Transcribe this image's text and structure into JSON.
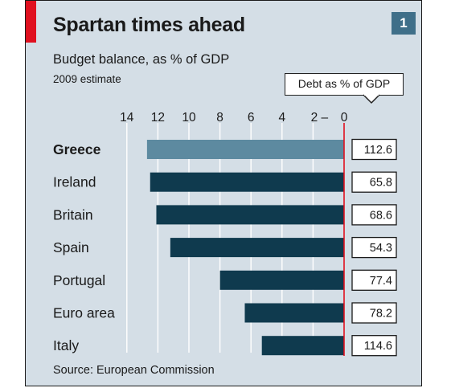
{
  "header": {
    "title": "Spartan times ahead",
    "subtitle": "Budget balance, as % of GDP",
    "note": "2009 estimate",
    "figure_number": "1"
  },
  "debt_header": "Debt as % of GDP",
  "source": "Source: European Commission",
  "colors": {
    "panel_background": "#d4dee6",
    "bar": "#0f3a4e",
    "highlight_bar": "#5d8aa0",
    "accent_red": "#e0101f",
    "zero_line": "#e0101f",
    "gridline": "#ffffff"
  },
  "chart_data": {
    "type": "bar",
    "orientation": "horizontal",
    "categories": [
      "Greece",
      "Ireland",
      "Britain",
      "Spain",
      "Portugal",
      "Euro area",
      "Italy"
    ],
    "highlight": "Greece",
    "series": [
      {
        "values": [
          -12.7,
          -12.5,
          -12.1,
          -11.2,
          -8.0,
          -6.4,
          -5.3
        ]
      }
    ],
    "xaxis": {
      "ticks": [
        14,
        12,
        10,
        8,
        6,
        4,
        2,
        0
      ],
      "tick_labels": [
        "14",
        "12",
        "10",
        "8",
        "6",
        "4",
        "2 –",
        "0"
      ],
      "range": [
        -14,
        0
      ],
      "grid": true
    },
    "debt_values": [
      "112.6",
      "65.8",
      "68.6",
      "54.3",
      "77.4",
      "78.2",
      "114.6"
    ]
  }
}
